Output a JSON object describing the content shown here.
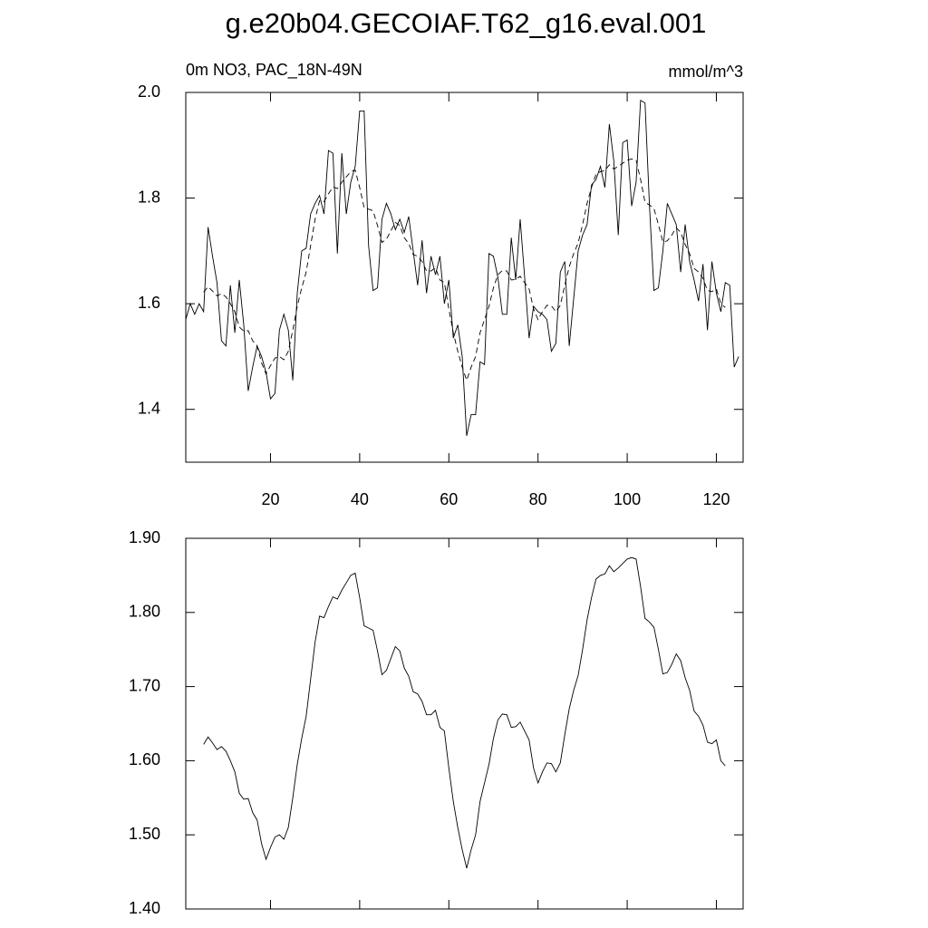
{
  "chart_data": [
    {
      "type": "line",
      "title": "g.e20b04.GECOIAF.T62_g16.eval.001",
      "subtitle_left": "0m NO3, PAC_18N-49N",
      "subtitle_right": "mmol/m^3",
      "x": [
        1,
        2,
        3,
        4,
        5,
        6,
        7,
        8,
        9,
        10,
        11,
        12,
        13,
        14,
        15,
        16,
        17,
        18,
        19,
        20,
        21,
        22,
        23,
        24,
        25,
        26,
        27,
        28,
        29,
        30,
        31,
        32,
        33,
        34,
        35,
        36,
        37,
        38,
        39,
        40,
        41,
        42,
        43,
        44,
        45,
        46,
        47,
        48,
        49,
        50,
        51,
        52,
        53,
        54,
        55,
        56,
        57,
        58,
        59,
        60,
        61,
        62,
        63,
        64,
        65,
        66,
        67,
        68,
        69,
        70,
        71,
        72,
        73,
        74,
        75,
        76,
        77,
        78,
        79,
        80,
        81,
        82,
        83,
        84,
        85,
        86,
        87,
        88,
        89,
        90,
        91,
        92,
        93,
        94,
        95,
        96,
        97,
        98,
        99,
        100,
        101,
        102,
        103,
        104,
        105,
        106,
        107,
        108,
        109,
        110,
        111,
        112,
        113,
        114,
        115,
        116,
        117,
        118,
        119,
        120,
        121,
        122,
        123,
        124,
        125
      ],
      "series": [
        {
          "color": "#000000",
          "dash": "none",
          "values": [
            1.57,
            1.6,
            1.58,
            1.6,
            1.585,
            1.745,
            1.69,
            1.64,
            1.53,
            1.52,
            1.635,
            1.545,
            1.645,
            1.56,
            1.435,
            1.48,
            1.52,
            1.5,
            1.47,
            1.42,
            1.43,
            1.55,
            1.58,
            1.55,
            1.455,
            1.62,
            1.7,
            1.705,
            1.77,
            1.79,
            1.805,
            1.77,
            1.89,
            1.885,
            1.695,
            1.885,
            1.77,
            1.83,
            1.86,
            1.965,
            1.965,
            1.71,
            1.625,
            1.63,
            1.76,
            1.79,
            1.77,
            1.74,
            1.76,
            1.735,
            1.765,
            1.7,
            1.635,
            1.72,
            1.62,
            1.69,
            1.655,
            1.69,
            1.6,
            1.645,
            1.535,
            1.56,
            1.5,
            1.35,
            1.39,
            1.39,
            1.49,
            1.485,
            1.695,
            1.69,
            1.65,
            1.58,
            1.58,
            1.725,
            1.645,
            1.76,
            1.65,
            1.535,
            1.595,
            1.585,
            1.58,
            1.57,
            1.51,
            1.525,
            1.66,
            1.68,
            1.52,
            1.61,
            1.7,
            1.73,
            1.75,
            1.825,
            1.835,
            1.86,
            1.82,
            1.94,
            1.87,
            1.73,
            1.905,
            1.91,
            1.785,
            1.83,
            1.985,
            1.98,
            1.785,
            1.625,
            1.63,
            1.7,
            1.79,
            1.77,
            1.75,
            1.66,
            1.75,
            1.68,
            1.645,
            1.605,
            1.675,
            1.55,
            1.68,
            1.62,
            1.585,
            1.64,
            1.635,
            1.48,
            1.5
          ]
        },
        {
          "color": "#000000",
          "dash": "6,4",
          "values": [
            null,
            null,
            null,
            null,
            1.622,
            1.632,
            1.624,
            1.615,
            1.619,
            1.613,
            1.6,
            1.585,
            1.556,
            1.548,
            1.549,
            1.53,
            1.52,
            1.488,
            1.467,
            1.483,
            1.497,
            1.5,
            1.494,
            1.51,
            1.55,
            1.595,
            1.63,
            1.66,
            1.71,
            1.76,
            1.795,
            1.793,
            1.808,
            1.821,
            1.818,
            1.83,
            1.84,
            1.85,
            1.853,
            1.82,
            1.782,
            1.779,
            1.776,
            1.748,
            1.716,
            1.722,
            1.738,
            1.754,
            1.748,
            1.725,
            1.714,
            1.693,
            1.69,
            1.68,
            1.662,
            1.662,
            1.668,
            1.645,
            1.64,
            1.59,
            1.545,
            1.51,
            1.48,
            1.455,
            1.48,
            1.5,
            1.545,
            1.57,
            1.595,
            1.63,
            1.655,
            1.663,
            1.662,
            1.645,
            1.646,
            1.652,
            1.64,
            1.628,
            1.59,
            1.57,
            1.585,
            1.597,
            1.596,
            1.585,
            1.597,
            1.635,
            1.67,
            1.695,
            1.715,
            1.75,
            1.79,
            1.82,
            1.845,
            1.85,
            1.852,
            1.863,
            1.855,
            1.86,
            1.866,
            1.872,
            1.874,
            1.872,
            1.835,
            1.792,
            1.787,
            1.78,
            1.75,
            1.717,
            1.719,
            1.73,
            1.744,
            1.735,
            1.712,
            1.695,
            1.667,
            1.66,
            1.648,
            1.625,
            1.623,
            1.628,
            1.6,
            1.593,
            null,
            null,
            null
          ]
        }
      ],
      "xlim": [
        1,
        126
      ],
      "xticks": [
        20,
        40,
        60,
        80,
        100,
        120
      ],
      "xtick_labels": true,
      "ylim": [
        1.3,
        2.0
      ],
      "yticks": [
        {
          "value": 1.4,
          "label": "1.4"
        },
        {
          "value": 1.6,
          "label": "1.6"
        },
        {
          "value": 1.8,
          "label": "1.8"
        },
        {
          "value": 2.0,
          "label": "2.0"
        }
      ]
    },
    {
      "type": "line",
      "x": [
        1,
        2,
        3,
        4,
        5,
        6,
        7,
        8,
        9,
        10,
        11,
        12,
        13,
        14,
        15,
        16,
        17,
        18,
        19,
        20,
        21,
        22,
        23,
        24,
        25,
        26,
        27,
        28,
        29,
        30,
        31,
        32,
        33,
        34,
        35,
        36,
        37,
        38,
        39,
        40,
        41,
        42,
        43,
        44,
        45,
        46,
        47,
        48,
        49,
        50,
        51,
        52,
        53,
        54,
        55,
        56,
        57,
        58,
        59,
        60,
        61,
        62,
        63,
        64,
        65,
        66,
        67,
        68,
        69,
        70,
        71,
        72,
        73,
        74,
        75,
        76,
        77,
        78,
        79,
        80,
        81,
        82,
        83,
        84,
        85,
        86,
        87,
        88,
        89,
        90,
        91,
        92,
        93,
        94,
        95,
        96,
        97,
        98,
        99,
        100,
        101,
        102,
        103,
        104,
        105,
        106,
        107,
        108,
        109,
        110,
        111,
        112,
        113,
        114,
        115,
        116,
        117,
        118,
        119,
        120,
        121,
        122,
        123,
        124,
        125
      ],
      "series": [
        {
          "color": "#000000",
          "dash": "none",
          "values": [
            null,
            null,
            null,
            null,
            1.622,
            1.632,
            1.624,
            1.615,
            1.619,
            1.613,
            1.6,
            1.585,
            1.556,
            1.548,
            1.549,
            1.53,
            1.52,
            1.488,
            1.467,
            1.483,
            1.497,
            1.5,
            1.494,
            1.51,
            1.55,
            1.595,
            1.63,
            1.66,
            1.71,
            1.76,
            1.795,
            1.793,
            1.808,
            1.821,
            1.818,
            1.83,
            1.84,
            1.85,
            1.853,
            1.82,
            1.782,
            1.779,
            1.776,
            1.748,
            1.716,
            1.722,
            1.738,
            1.754,
            1.748,
            1.725,
            1.714,
            1.693,
            1.69,
            1.68,
            1.662,
            1.662,
            1.668,
            1.645,
            1.64,
            1.59,
            1.545,
            1.51,
            1.48,
            1.455,
            1.48,
            1.5,
            1.545,
            1.57,
            1.595,
            1.63,
            1.655,
            1.663,
            1.662,
            1.645,
            1.646,
            1.652,
            1.64,
            1.628,
            1.59,
            1.57,
            1.585,
            1.597,
            1.596,
            1.585,
            1.597,
            1.635,
            1.67,
            1.695,
            1.715,
            1.75,
            1.79,
            1.82,
            1.845,
            1.85,
            1.852,
            1.863,
            1.855,
            1.86,
            1.866,
            1.872,
            1.874,
            1.872,
            1.835,
            1.792,
            1.787,
            1.78,
            1.75,
            1.717,
            1.719,
            1.73,
            1.744,
            1.735,
            1.712,
            1.695,
            1.667,
            1.66,
            1.648,
            1.625,
            1.623,
            1.628,
            1.6,
            1.593,
            null,
            null,
            null
          ]
        }
      ],
      "xlim": [
        1,
        126
      ],
      "xticks": [
        20,
        40,
        60,
        80,
        100,
        120
      ],
      "xtick_labels": false,
      "ylim": [
        1.4,
        1.9
      ],
      "yticks": [
        {
          "value": 1.4,
          "label": "1.40"
        },
        {
          "value": 1.5,
          "label": "1.50"
        },
        {
          "value": 1.6,
          "label": "1.60"
        },
        {
          "value": 1.7,
          "label": "1.70"
        },
        {
          "value": 1.8,
          "label": "1.80"
        },
        {
          "value": 1.9,
          "label": "1.90"
        }
      ]
    }
  ]
}
